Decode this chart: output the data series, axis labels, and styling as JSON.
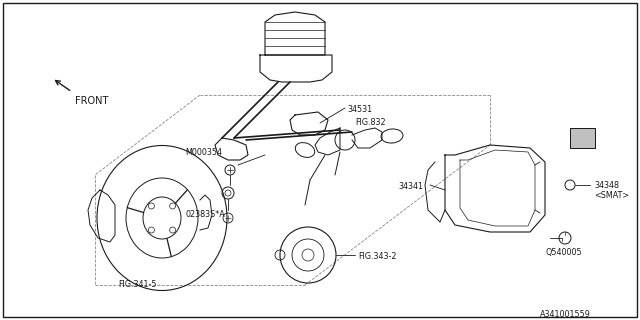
{
  "bg_color": "#ffffff",
  "line_color": "#1a1a1a",
  "part_number": "A341001559",
  "labels": {
    "FRONT": "FRONT",
    "M000354": "M000354",
    "34531": "34531",
    "FIG832": "FIG.832",
    "02383A": "02383S*A",
    "34341": "34341",
    "34348": "34348",
    "SMAT": "<SMAT>",
    "Q540005": "Q540005",
    "FIG341_5": "FIG.341-5",
    "FIG343_2": "FIG.343-2"
  }
}
